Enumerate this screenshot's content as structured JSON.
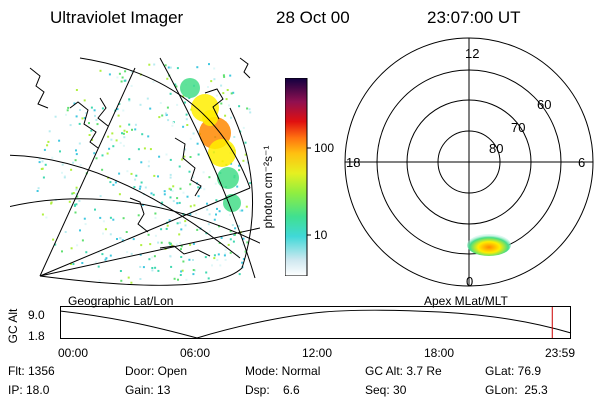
{
  "header": {
    "instrument": "Ultraviolet Imager",
    "date": "28 Oct 00",
    "time": "23:07:00 UT"
  },
  "colorbar": {
    "unit_label": "photon cm⁻²s⁻¹",
    "ticks": [
      "100",
      "10"
    ]
  },
  "left_panel": {
    "label": "Geographic Lat/Lon"
  },
  "right_panel": {
    "label": "Apex  MLat/MLT",
    "mlt_labels": {
      "top": "12",
      "left": "18",
      "right": "6",
      "bottom": "0"
    },
    "lat_labels": [
      "60",
      "70",
      "80"
    ]
  },
  "altitude_plot": {
    "ylabel": "GC Alt",
    "yticks": [
      "9.0",
      "1.8"
    ],
    "xticks": [
      "00:00",
      "06:00",
      "12:00",
      "18:00",
      "23:59"
    ],
    "current_time_hours": 23.12
  },
  "info": {
    "flt": "Flt: 1356",
    "door": "Door: Open",
    "mode": "Mode: Normal",
    "gc_alt": "GC Alt: 3.7 Re",
    "glat": "GLat:  76.9",
    "ip": "IP: 18.0",
    "gain": "Gain: 13",
    "dsp": "Dsp:    6.6",
    "seq": "Seq: 30",
    "glon": "GLon:  25.3"
  },
  "colors": {
    "marker": "#cc0000",
    "aurora_high": "#ff8800",
    "aurora_mid": "#ffee00",
    "aurora_low": "#44dd88"
  }
}
